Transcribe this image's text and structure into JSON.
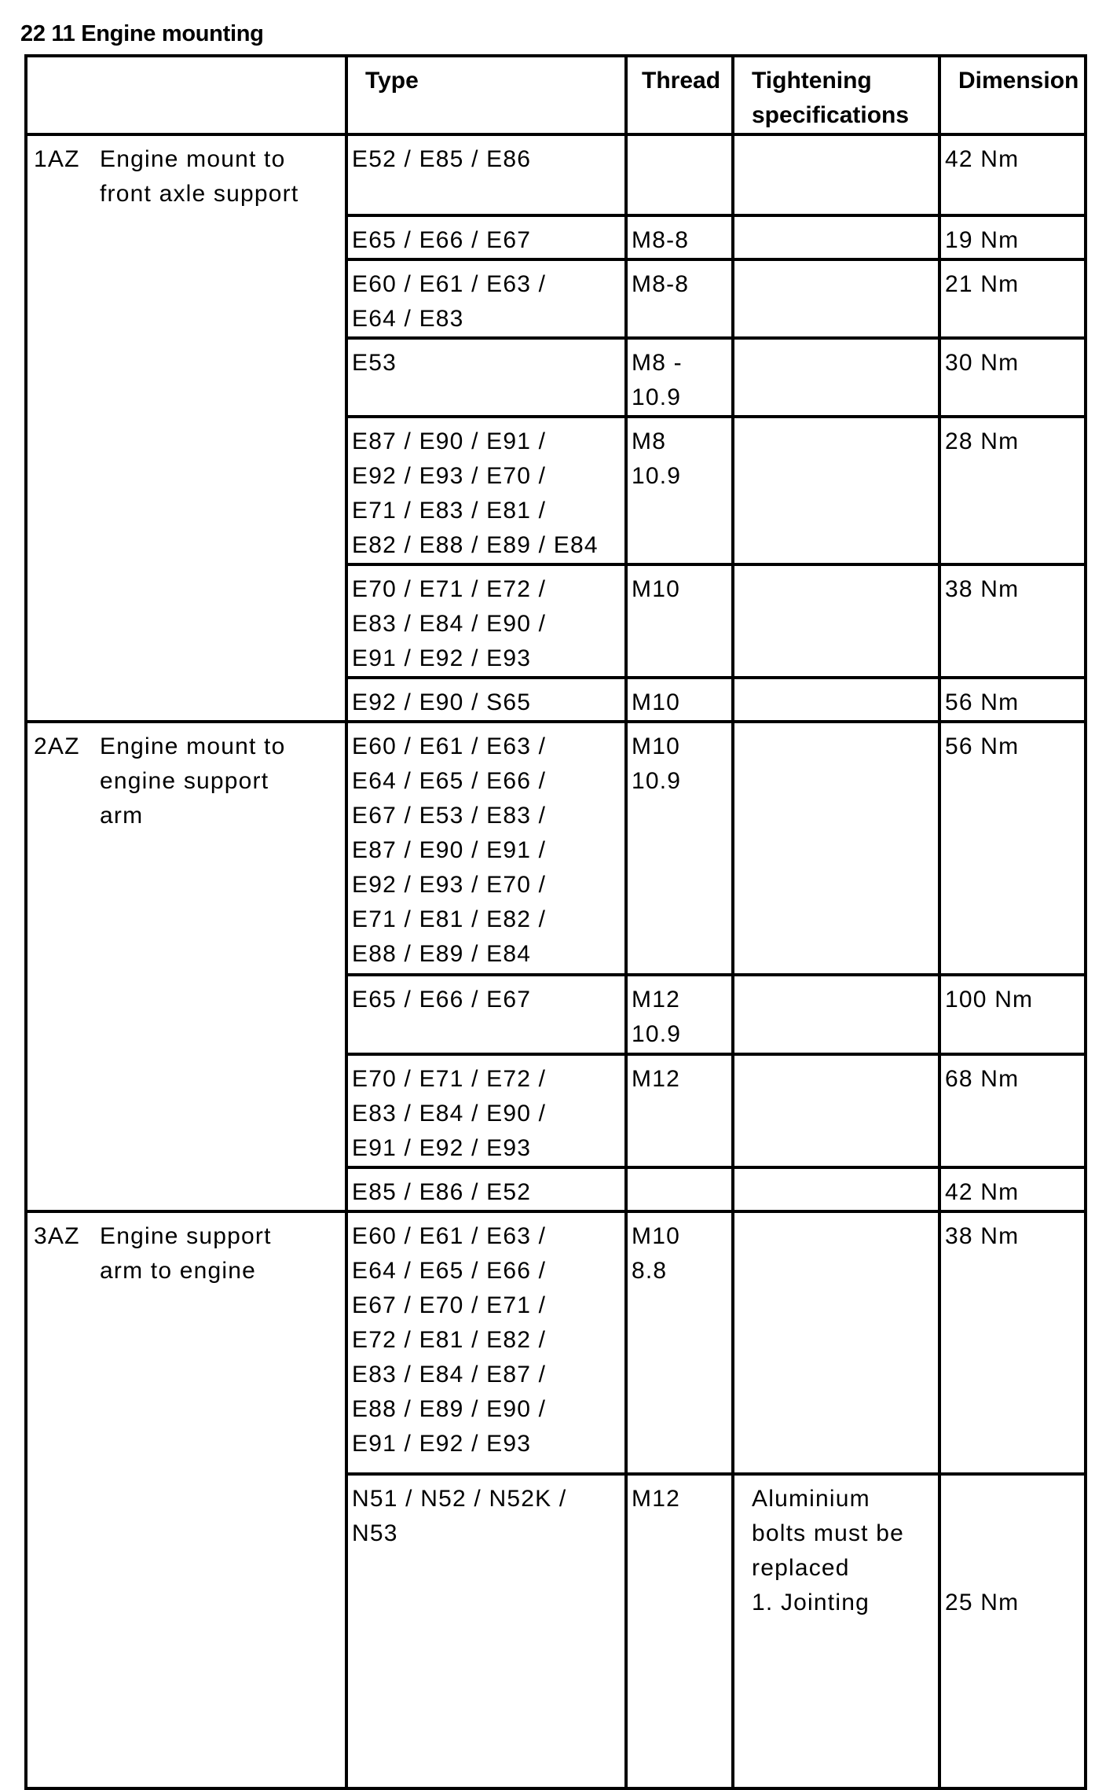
{
  "title": "22 11 Engine mounting",
  "headers": {
    "blank": "",
    "type": "Type",
    "thread": "Thread",
    "tightening": [
      "Tightening",
      "specifications"
    ],
    "dimension": "Dimension"
  },
  "groups": [
    {
      "code": "1AZ",
      "description": [
        "Engine mount to",
        "front axle support"
      ],
      "rows": [
        {
          "type": [
            "E52 / E85 / E86"
          ],
          "thread": [],
          "spec": [],
          "dimension": "42 Nm"
        },
        {
          "type": [
            "E65 / E66 / E67"
          ],
          "thread": [
            "M8-8"
          ],
          "spec": [],
          "dimension": "19 Nm"
        },
        {
          "type": [
            "E60 / E61 / E63 /",
            "E64 / E83"
          ],
          "thread": [
            "M8-8"
          ],
          "spec": [],
          "dimension": "21 Nm"
        },
        {
          "type": [
            "E53"
          ],
          "thread": [
            "M8 -",
            "10.9"
          ],
          "spec": [],
          "dimension": "30 Nm"
        },
        {
          "type": [
            "E87 / E90 / E91 /",
            "E92 / E93 / E70 /",
            "E71 / E83 / E81 /",
            "E82 / E88 / E89 / E84"
          ],
          "thread": [
            "M8",
            "10.9"
          ],
          "spec": [],
          "dimension": "28 Nm"
        },
        {
          "type": [
            "E70 / E71 / E72 /",
            "E83 / E84 / E90 /",
            "E91 / E92 / E93"
          ],
          "thread": [
            "M10"
          ],
          "spec": [],
          "dimension": "38 Nm"
        },
        {
          "type": [
            "E92 / E90 / S65"
          ],
          "thread": [
            "M10"
          ],
          "spec": [],
          "dimension": "56 Nm"
        }
      ]
    },
    {
      "code": "2AZ",
      "description": [
        "Engine mount to",
        "engine support",
        "arm"
      ],
      "rows": [
        {
          "type": [
            "E60 / E61 / E63 /",
            "E64 / E65 / E66 /",
            "E67 / E53 / E83 /",
            "E87 / E90 / E91 /",
            "E92 / E93 / E70 /",
            "E71 / E81 / E82 /",
            "E88 / E89 / E84"
          ],
          "thread": [
            "M10",
            "10.9"
          ],
          "spec": [],
          "dimension": "56 Nm"
        },
        {
          "type": [
            "E65 / E66 / E67"
          ],
          "thread": [
            "M12",
            "10.9"
          ],
          "spec": [],
          "dimension": "100 Nm"
        },
        {
          "type": [
            "E70 / E71 / E72 /",
            "E83 / E84 / E90 /",
            "E91 / E92 / E93"
          ],
          "thread": [
            "M12"
          ],
          "spec": [],
          "dimension": "68 Nm"
        },
        {
          "type": [
            "E85 / E86 / E52"
          ],
          "thread": [],
          "spec": [],
          "dimension": "42 Nm"
        }
      ]
    },
    {
      "code": "3AZ",
      "description": [
        "Engine support",
        "arm to engine"
      ],
      "rows": [
        {
          "type": [
            "E60 / E61 / E63 /",
            "E64 / E65 / E66 /",
            "E67 / E70 / E71 /",
            "E72 / E81 / E82 /",
            "E83 / E84 / E87 /",
            "E88 / E89 / E90 /",
            "E91 / E92 / E93"
          ],
          "thread": [
            "M10",
            "8.8"
          ],
          "spec": [],
          "dimension": "38 Nm"
        },
        {
          "type": [
            "N51 / N52 / N52K /",
            "N53"
          ],
          "thread": [
            "M12"
          ],
          "spec": [
            "Aluminium",
            "bolts must be",
            "replaced",
            "1. Jointing"
          ],
          "dimension": "25 Nm",
          "dimension_line": 3
        }
      ]
    }
  ]
}
